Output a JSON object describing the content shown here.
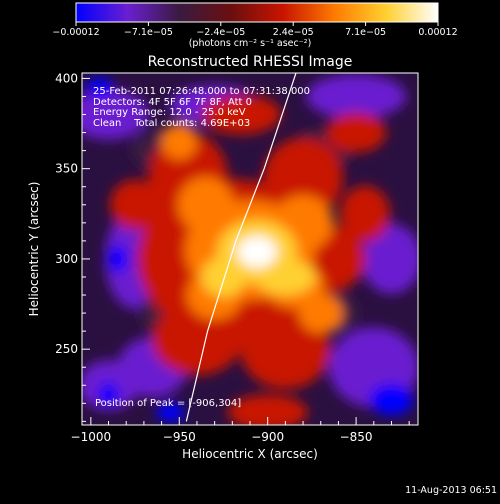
{
  "chart_data": {
    "type": "heatmap",
    "title": "Reconstructed RHESSI Image",
    "xlabel": "Heliocentric X (arcsec)",
    "ylabel": "Heliocentric Y (arcsec)",
    "xlim": [
      -1005,
      -815
    ],
    "ylim": [
      208,
      403
    ],
    "x_ticks": [
      "−1000",
      "−950",
      "−900",
      "−850"
    ],
    "x_tick_values": [
      -1000,
      -950,
      -900,
      -850
    ],
    "y_ticks": [
      "250",
      "300",
      "350",
      "400"
    ],
    "y_tick_values": [
      250,
      300,
      350,
      400
    ],
    "colorbar": {
      "min": -0.00012,
      "max": 0.00012,
      "tick_labels": [
        "−0.00012",
        "−7.1e−05",
        "−2.4e−05",
        "2.4e−05",
        "7.1e−05",
        "0.00012"
      ],
      "units": "(photons cm⁻² s⁻¹ asec⁻²)",
      "colormap": [
        "#0000ff",
        "#6a1fd0",
        "#3a1a40",
        "#6a0f0f",
        "#c81400",
        "#ff7a00",
        "#ffd030",
        "#ffffff"
      ]
    },
    "peak": {
      "x": -906,
      "y": 304
    },
    "limb_curve": [
      [
        -946,
        210
      ],
      [
        -934,
        260
      ],
      [
        -918,
        310
      ],
      [
        -902,
        350
      ],
      [
        -884,
        403
      ]
    ]
  },
  "overlay": {
    "time": "25-Feb-2011 07:26:48.000 to 07:31:38.000",
    "detectors": "Detectors: 4F 5F 6F 7F 8F, Att 0",
    "energy": "Energy Range: 12.0 - 25.0 keV",
    "clean": "Clean    Total counts: 4.69E+03",
    "peak_label": "Position of Peak = [-906,304]"
  },
  "footer": "11-Aug-2013 06:51"
}
